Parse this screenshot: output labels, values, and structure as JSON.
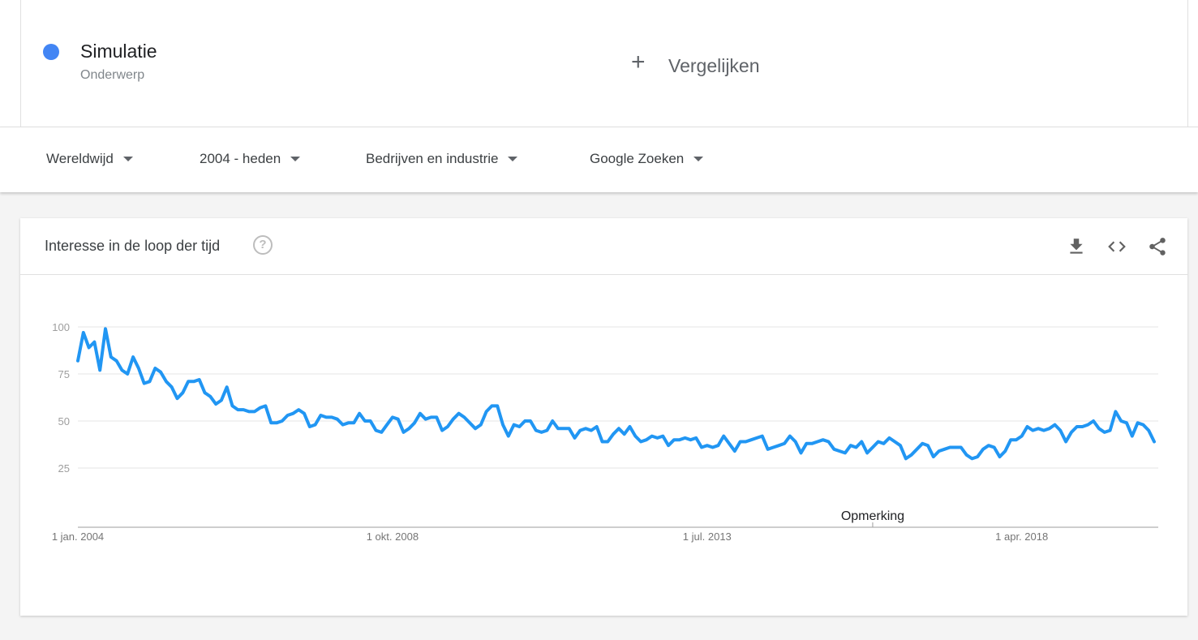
{
  "term": {
    "name": "Simulatie",
    "type": "Onderwerp",
    "color": "#4285f4"
  },
  "compare": {
    "plus": "+",
    "label": "Vergelijken"
  },
  "filters": {
    "region": "Wereldwijd",
    "period": "2004 - heden",
    "category": "Bedrijven en industrie",
    "property": "Google Zoeken"
  },
  "card": {
    "title": "Interesse in de loop der tijd",
    "help_glyph": "?",
    "icons": [
      "download-icon",
      "embed-code-icon",
      "share-icon"
    ]
  },
  "chart_data": {
    "type": "line",
    "series": [
      {
        "color": "#2196f3",
        "start": "2004-01",
        "frequency": "monthly",
        "values": [
          82,
          97,
          89,
          92,
          77,
          99,
          84,
          82,
          77,
          75,
          84,
          78,
          70,
          71,
          78,
          76,
          71,
          68,
          62,
          65,
          71,
          71,
          72,
          65,
          63,
          59,
          61,
          68,
          58,
          56,
          56,
          55,
          55,
          57,
          58,
          49,
          49,
          50,
          53,
          54,
          56,
          54,
          47,
          48,
          53,
          52,
          52,
          51,
          48,
          49,
          49,
          54,
          50,
          50,
          45,
          44,
          48,
          52,
          51,
          44,
          46,
          49,
          54,
          51,
          52,
          52,
          45,
          47,
          51,
          54,
          52,
          49,
          46,
          48,
          55,
          58,
          58,
          48,
          42,
          48,
          47,
          50,
          50,
          45,
          44,
          45,
          50,
          46,
          46,
          46,
          41,
          45,
          46,
          45,
          47,
          39,
          39,
          43,
          46,
          43,
          47,
          42,
          39,
          40,
          42,
          41,
          42,
          37,
          40,
          40,
          41,
          40,
          41,
          36,
          37,
          36,
          37,
          42,
          38,
          34,
          39,
          39,
          40,
          41,
          42,
          35,
          36,
          37,
          38,
          42,
          39,
          33,
          38,
          38,
          39,
          40,
          39,
          35,
          34,
          33,
          37,
          36,
          39,
          33,
          36,
          39,
          38,
          41,
          39,
          37,
          30,
          32,
          35,
          38,
          37,
          31,
          34,
          35,
          36,
          36,
          36,
          32,
          30,
          31,
          35,
          37,
          36,
          31,
          34,
          40,
          40,
          42,
          47,
          45,
          46,
          45,
          46,
          48,
          45,
          39,
          44,
          47,
          47,
          48,
          50,
          46,
          44,
          45,
          55,
          50,
          49,
          42,
          49,
          48,
          45,
          39
        ]
      }
    ],
    "y_ticks": [
      25,
      50,
      75,
      100
    ],
    "ylim": [
      0,
      100
    ],
    "x_tick_labels": [
      {
        "date": "2004-01",
        "label": "1 jan. 2004"
      },
      {
        "date": "2008-10",
        "label": "1 okt. 2008"
      },
      {
        "date": "2013-07",
        "label": "1 jul. 2013"
      },
      {
        "date": "2018-04",
        "label": "1 apr. 2018"
      }
    ],
    "annotation": {
      "date": "2016-01",
      "label": "Opmerking"
    },
    "grid": true
  }
}
